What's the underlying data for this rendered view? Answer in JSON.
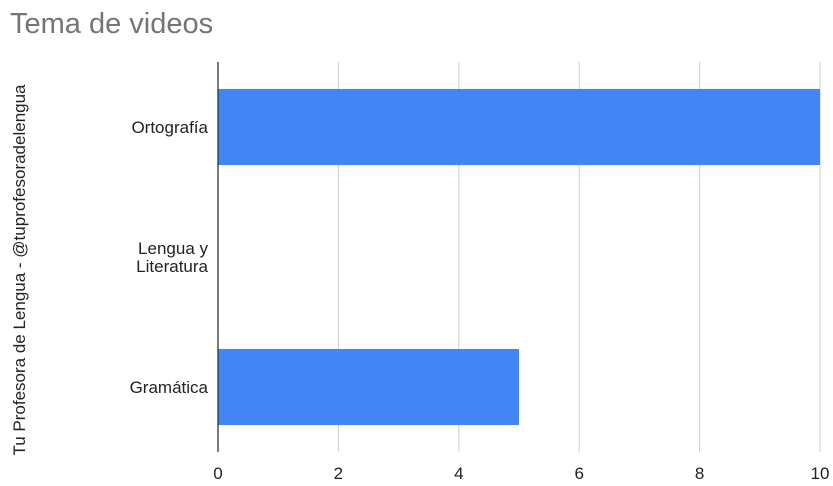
{
  "chart_data": {
    "type": "bar",
    "orientation": "horizontal",
    "title": "Tema de videos",
    "xlabel": "",
    "ylabel": "Tu Profesora de Lengua - @tuprofesoradelengua",
    "categories": [
      "Ortografía",
      "Lengua y Literatura",
      "Gramática"
    ],
    "category_lines": [
      [
        "Ortografía"
      ],
      [
        "Lengua y",
        "Literatura"
      ],
      [
        "Gramática"
      ]
    ],
    "values": [
      10,
      0,
      5
    ],
    "xlim": [
      0,
      10
    ],
    "xticks": [
      "0",
      "2",
      "4",
      "6",
      "8",
      "10"
    ],
    "grid": true,
    "legend": "none",
    "bar_color": "#4285f4",
    "grid_color": "#cccccc",
    "axis_color": "#333333"
  }
}
